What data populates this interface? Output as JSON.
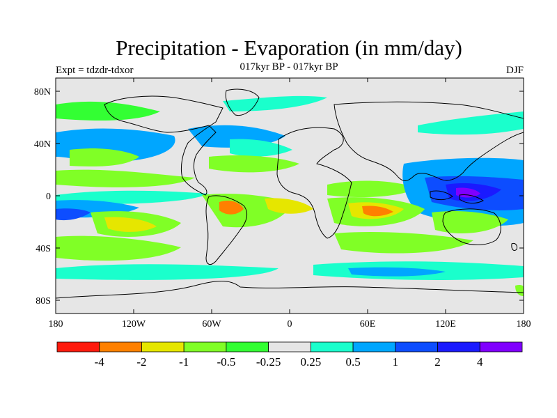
{
  "title": "Precipitation - Evaporation (in mm/day)",
  "subtitle": "017kyr BP - 017kyr BP",
  "left_label": "Expt = tdzdr-tdxor",
  "right_label": "DJF",
  "y_ticks": [
    "80N",
    "40N",
    "0",
    "40S",
    "80S"
  ],
  "x_ticks": [
    "180",
    "120W",
    "60W",
    "0",
    "60E",
    "120E",
    "180"
  ],
  "colorbar": {
    "colors": [
      "#ff1a0d",
      "#ff8000",
      "#e6e600",
      "#80ff26",
      "#33ff33",
      "#e6e6e6",
      "#1affcc",
      "#00a6ff",
      "#0d4dff",
      "#1a1aff",
      "#8000ff"
    ],
    "labels": [
      "-4",
      "-2",
      "-1",
      "-0.5",
      "-0.25",
      "0.25",
      "0.5",
      "1",
      "2",
      "4"
    ]
  }
}
